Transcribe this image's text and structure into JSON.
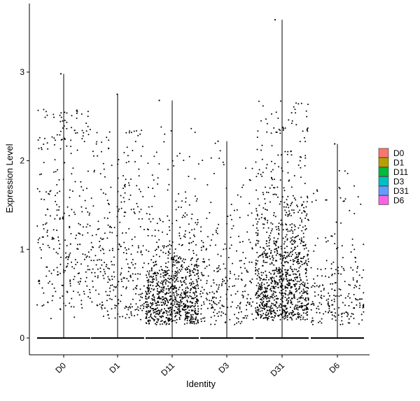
{
  "chart_data": {
    "type": "scatter",
    "subtype": "violin-jitter",
    "title": "",
    "xlabel": "Identity",
    "ylabel": "Expression Level",
    "categories": [
      "D0",
      "D1",
      "D11",
      "D3",
      "D31",
      "D6"
    ],
    "yticks": [
      0,
      1,
      2,
      3
    ],
    "ylim": [
      -0.2,
      3.65
    ],
    "grid": false,
    "legend_position": "right",
    "legend": [
      {
        "label": "D0",
        "color": "#F8766D"
      },
      {
        "label": "D1",
        "color": "#B79F00"
      },
      {
        "label": "D11",
        "color": "#00BA38"
      },
      {
        "label": "D3",
        "color": "#00BFC4"
      },
      {
        "label": "D31",
        "color": "#619CFF"
      },
      {
        "label": "D6",
        "color": "#F564E3"
      }
    ],
    "groups": [
      {
        "name": "D0",
        "max": 2.98,
        "n_points": 300,
        "point_spread": [
          0.2,
          2.6
        ],
        "median_nonzero": 1.3
      },
      {
        "name": "D1",
        "max": 2.75,
        "n_points": 320,
        "point_spread": [
          0.2,
          2.35
        ],
        "median_nonzero": 0.9
      },
      {
        "name": "D11",
        "max": 2.68,
        "n_points": 900,
        "point_spread": [
          0.15,
          2.4
        ],
        "median_nonzero": 0.5
      },
      {
        "name": "D3",
        "max": 2.22,
        "n_points": 260,
        "point_spread": [
          0.15,
          2.2
        ],
        "median_nonzero": 0.6
      },
      {
        "name": "D31",
        "max": 3.59,
        "n_points": 1100,
        "point_spread": [
          0.2,
          2.7
        ],
        "median_nonzero": 0.7
      },
      {
        "name": "D6",
        "max": 2.19,
        "n_points": 230,
        "point_spread": [
          0.15,
          1.9
        ],
        "median_nonzero": 0.5
      }
    ]
  }
}
